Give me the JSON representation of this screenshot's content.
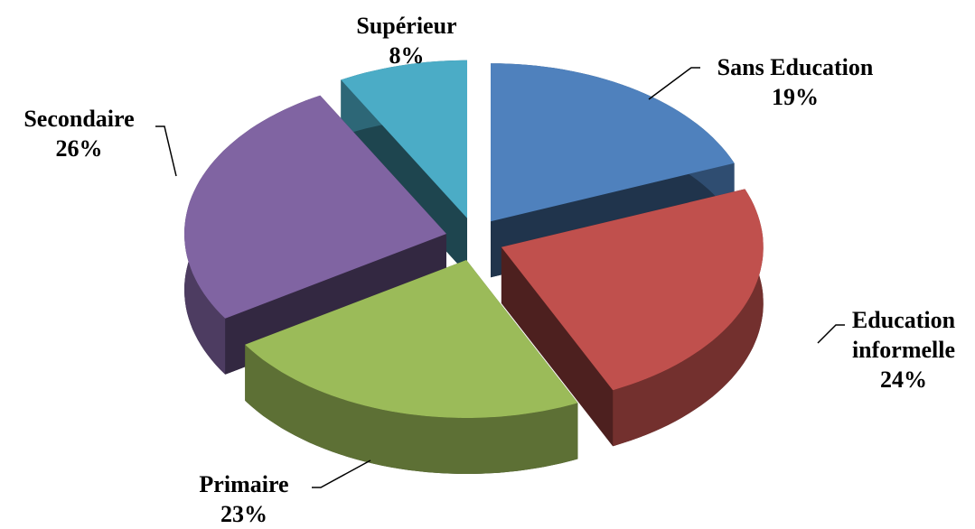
{
  "chart_data": {
    "type": "pie",
    "categories": [
      "Sans Education",
      "Education informelle",
      "Primaire",
      "Secondaire",
      "Supérieur"
    ],
    "values": [
      19,
      24,
      23,
      26,
      8
    ],
    "value_labels": [
      "19%",
      "24%",
      "23%",
      "26%",
      "8%"
    ],
    "colors": [
      "#4f81bd",
      "#c0504d",
      "#9bbb59",
      "#8064a2",
      "#4bacc6"
    ]
  }
}
